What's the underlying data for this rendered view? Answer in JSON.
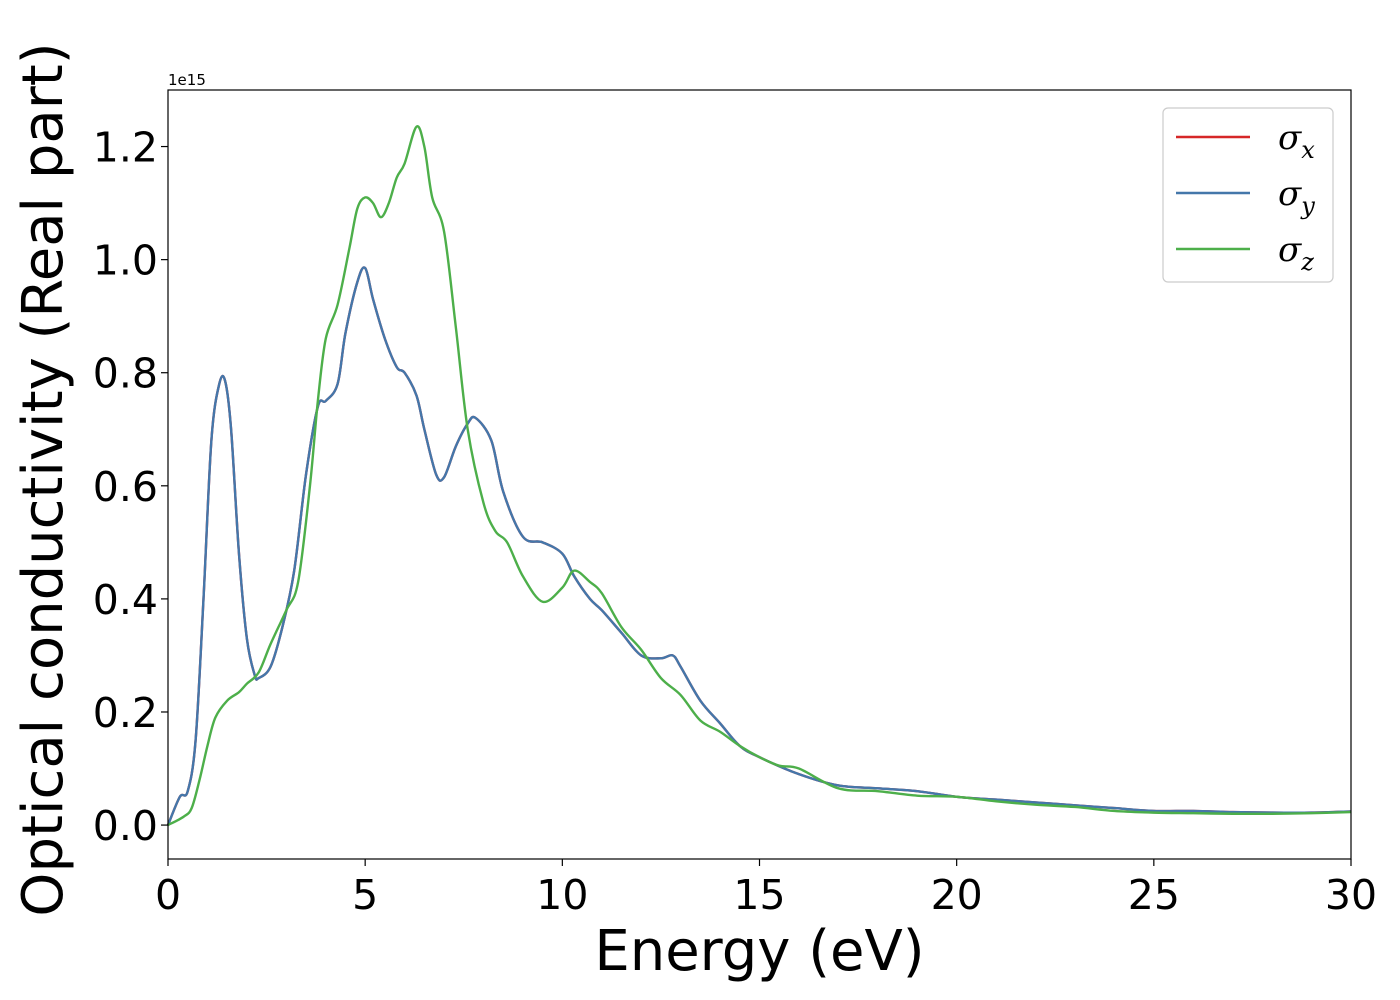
{
  "chart_data": {
    "type": "line",
    "xlabel": "Energy (eV)",
    "ylabel": "Optical conductivity (Real part)",
    "offset_label": "1e15",
    "xlim": [
      0,
      30
    ],
    "ylim": [
      -0.06,
      1.3
    ],
    "y_scale_note": "values in units of 1e15",
    "xticks": [
      0,
      5,
      10,
      15,
      20,
      25,
      30
    ],
    "xtick_labels": [
      "0",
      "5",
      "10",
      "15",
      "20",
      "25",
      "30"
    ],
    "yticks": [
      0.0,
      0.2,
      0.4,
      0.6,
      0.8,
      1.0,
      1.2
    ],
    "ytick_labels": [
      "0.0",
      "0.2",
      "0.4",
      "0.6",
      "0.8",
      "1.0",
      "1.2"
    ],
    "grid": false,
    "legend_position": "top-right",
    "series": [
      {
        "name": "σx",
        "symbol": "σ",
        "subscript": "x",
        "color": "#d62728",
        "x": [
          0,
          0.3,
          0.5,
          0.7,
          0.9,
          1.1,
          1.3,
          1.45,
          1.6,
          1.8,
          2.0,
          2.2,
          2.3,
          2.6,
          2.9,
          3.2,
          3.5,
          3.8,
          4.0,
          4.3,
          4.5,
          4.8,
          5.0,
          5.2,
          5.5,
          5.8,
          6.0,
          6.3,
          6.5,
          6.8,
          7.0,
          7.3,
          7.6,
          7.8,
          8.2,
          8.5,
          9.0,
          9.5,
          10.0,
          10.3,
          10.7,
          11.0,
          11.5,
          12.0,
          12.5,
          12.8,
          13.0,
          13.5,
          14.0,
          14.5,
          15.0,
          16.0,
          17.0,
          18.0,
          19.0,
          20.0,
          21.0,
          22.0,
          23.0,
          24.0,
          25.0,
          26.0,
          27.0,
          28.0,
          29.0,
          30.0
        ],
        "y": [
          0.0,
          0.05,
          0.06,
          0.15,
          0.4,
          0.68,
          0.78,
          0.785,
          0.7,
          0.48,
          0.33,
          0.265,
          0.26,
          0.28,
          0.35,
          0.45,
          0.62,
          0.74,
          0.75,
          0.78,
          0.87,
          0.96,
          0.985,
          0.93,
          0.86,
          0.81,
          0.8,
          0.76,
          0.7,
          0.62,
          0.615,
          0.67,
          0.71,
          0.72,
          0.68,
          0.59,
          0.51,
          0.5,
          0.48,
          0.44,
          0.4,
          0.38,
          0.34,
          0.3,
          0.295,
          0.3,
          0.28,
          0.22,
          0.18,
          0.14,
          0.12,
          0.09,
          0.07,
          0.065,
          0.06,
          0.05,
          0.045,
          0.04,
          0.035,
          0.03,
          0.025,
          0.025,
          0.023,
          0.022,
          0.022,
          0.024
        ]
      },
      {
        "name": "σy",
        "symbol": "σ",
        "subscript": "y",
        "color": "#4477aa",
        "x": [
          0,
          0.3,
          0.5,
          0.7,
          0.9,
          1.1,
          1.3,
          1.45,
          1.6,
          1.8,
          2.0,
          2.2,
          2.3,
          2.6,
          2.9,
          3.2,
          3.5,
          3.8,
          4.0,
          4.3,
          4.5,
          4.8,
          5.0,
          5.2,
          5.5,
          5.8,
          6.0,
          6.3,
          6.5,
          6.8,
          7.0,
          7.3,
          7.6,
          7.8,
          8.2,
          8.5,
          9.0,
          9.5,
          10.0,
          10.3,
          10.7,
          11.0,
          11.5,
          12.0,
          12.5,
          12.8,
          13.0,
          13.5,
          14.0,
          14.5,
          15.0,
          16.0,
          17.0,
          18.0,
          19.0,
          20.0,
          21.0,
          22.0,
          23.0,
          24.0,
          25.0,
          26.0,
          27.0,
          28.0,
          29.0,
          30.0
        ],
        "y": [
          0.0,
          0.05,
          0.06,
          0.15,
          0.4,
          0.68,
          0.78,
          0.785,
          0.7,
          0.48,
          0.33,
          0.265,
          0.26,
          0.28,
          0.35,
          0.45,
          0.62,
          0.74,
          0.75,
          0.78,
          0.87,
          0.96,
          0.985,
          0.93,
          0.86,
          0.81,
          0.8,
          0.76,
          0.7,
          0.62,
          0.615,
          0.67,
          0.71,
          0.72,
          0.68,
          0.59,
          0.51,
          0.5,
          0.48,
          0.44,
          0.4,
          0.38,
          0.34,
          0.3,
          0.295,
          0.3,
          0.28,
          0.22,
          0.18,
          0.14,
          0.12,
          0.09,
          0.07,
          0.065,
          0.06,
          0.05,
          0.045,
          0.04,
          0.035,
          0.03,
          0.025,
          0.025,
          0.023,
          0.022,
          0.022,
          0.024
        ]
      },
      {
        "name": "σz",
        "symbol": "σ",
        "subscript": "z",
        "color": "#4daf4a",
        "x": [
          0,
          0.4,
          0.6,
          0.8,
          1.0,
          1.2,
          1.5,
          1.8,
          2.0,
          2.3,
          2.6,
          3.0,
          3.3,
          3.6,
          3.8,
          4.0,
          4.3,
          4.6,
          4.8,
          5.0,
          5.2,
          5.4,
          5.6,
          5.8,
          6.0,
          6.3,
          6.5,
          6.7,
          7.0,
          7.3,
          7.6,
          8.0,
          8.3,
          8.6,
          9.0,
          9.5,
          10.0,
          10.3,
          10.7,
          11.0,
          11.5,
          12.0,
          12.5,
          13.0,
          13.5,
          14.0,
          14.5,
          15.0,
          15.5,
          16.0,
          17.0,
          18.0,
          19.0,
          20.0,
          21.0,
          22.0,
          23.0,
          24.0,
          25.0,
          26.0,
          27.0,
          28.0,
          29.0,
          30.0
        ],
        "y": [
          0.0,
          0.015,
          0.03,
          0.08,
          0.14,
          0.19,
          0.22,
          0.235,
          0.25,
          0.27,
          0.32,
          0.38,
          0.43,
          0.6,
          0.75,
          0.86,
          0.92,
          1.02,
          1.09,
          1.11,
          1.1,
          1.075,
          1.1,
          1.145,
          1.17,
          1.235,
          1.2,
          1.11,
          1.05,
          0.88,
          0.7,
          0.57,
          0.52,
          0.5,
          0.44,
          0.395,
          0.42,
          0.45,
          0.43,
          0.41,
          0.35,
          0.31,
          0.26,
          0.23,
          0.185,
          0.165,
          0.14,
          0.12,
          0.105,
          0.1,
          0.065,
          0.06,
          0.052,
          0.05,
          0.042,
          0.036,
          0.032,
          0.025,
          0.022,
          0.021,
          0.02,
          0.02,
          0.021,
          0.023
        ]
      }
    ]
  }
}
